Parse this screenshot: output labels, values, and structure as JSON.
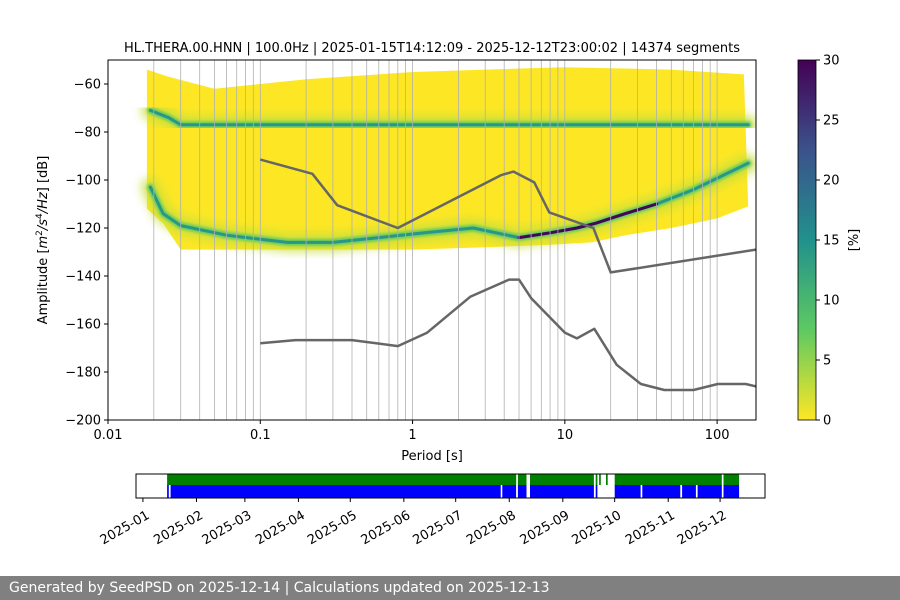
{
  "chart_data": [
    {
      "type": "heatmap",
      "title": "HL.THERA.00.HNN | 100.0Hz | 2025-01-15T14:12:09 - 2025-12-12T23:00:02 | 14374 segments",
      "xlabel": "Period [s]",
      "ylabel": "Amplitude [m²/s⁴/Hz] [dB]",
      "x_scale": "log",
      "xlim": [
        0.01,
        180
      ],
      "ylim": [
        -200,
        -50
      ],
      "x_ticks": [
        {
          "value": 0.01,
          "label": "0.01"
        },
        {
          "value": 0.1,
          "label": "0.1"
        },
        {
          "value": 1,
          "label": "1"
        },
        {
          "value": 10,
          "label": "10"
        },
        {
          "value": 100,
          "label": "100"
        }
      ],
      "y_ticks": [
        {
          "value": -60,
          "label": "−60"
        },
        {
          "value": -80,
          "label": "−80"
        },
        {
          "value": -100,
          "label": "−100"
        },
        {
          "value": -120,
          "label": "−120"
        },
        {
          "value": -140,
          "label": "−140"
        },
        {
          "value": -160,
          "label": "−160"
        },
        {
          "value": -180,
          "label": "−180"
        },
        {
          "value": -200,
          "label": "−200"
        }
      ],
      "grid": "vertical lines at log-spaced periods",
      "colorbar": {
        "label": "[%]",
        "range": [
          0,
          30
        ],
        "ticks": [
          {
            "value": 0,
            "label": "0"
          },
          {
            "value": 5,
            "label": "5"
          },
          {
            "value": 10,
            "label": "10"
          },
          {
            "value": 15,
            "label": "15"
          },
          {
            "value": 20,
            "label": "20"
          },
          {
            "value": 25,
            "label": "25"
          },
          {
            "value": 30,
            "label": "30"
          }
        ],
        "colormap": "viridis_r",
        "colors": [
          "#fde725",
          "#5ec962",
          "#21918c",
          "#3b528b",
          "#440154"
        ]
      },
      "density_ridges": [
        {
          "points": [
            [
              0.019,
              -103
            ],
            [
              0.023,
              -114
            ],
            [
              0.03,
              -119
            ],
            [
              0.06,
              -123
            ],
            [
              0.15,
              -126
            ],
            [
              0.3,
              -126
            ],
            [
              0.6,
              -124
            ],
            [
              1.2,
              -122
            ],
            [
              2.5,
              -120
            ],
            [
              5,
              -124
            ],
            [
              8,
              -122
            ],
            [
              12,
              -120
            ],
            [
              16,
              -118
            ],
            [
              25,
              -114
            ],
            [
              40,
              -110
            ],
            [
              70,
              -104
            ],
            [
              110,
              -98
            ],
            [
              160,
              -93
            ]
          ]
        },
        {
          "points": [
            [
              0.019,
              -71
            ],
            [
              0.025,
              -74
            ],
            [
              0.03,
              -77
            ],
            [
              0.05,
              -77
            ],
            [
              0.2,
              -77
            ],
            [
              1,
              -77
            ],
            [
              5,
              -77
            ],
            [
              20,
              -77
            ],
            [
              60,
              -77
            ],
            [
              160,
              -77
            ]
          ]
        }
      ],
      "density_envelope": {
        "upper": [
          [
            0.018,
            -54
          ],
          [
            0.025,
            -57
          ],
          [
            0.05,
            -62
          ],
          [
            0.2,
            -58
          ],
          [
            1,
            -55
          ],
          [
            3,
            -54
          ],
          [
            10,
            -53
          ],
          [
            50,
            -54
          ],
          [
            150,
            -56
          ]
        ],
        "lower": [
          [
            0.018,
            -112
          ],
          [
            0.023,
            -118
          ],
          [
            0.03,
            -129
          ],
          [
            0.1,
            -129
          ],
          [
            1,
            -129
          ],
          [
            3,
            -128
          ],
          [
            8,
            -127
          ],
          [
            15,
            -126
          ],
          [
            25,
            -123
          ],
          [
            50,
            -120
          ],
          [
            100,
            -116
          ],
          [
            160,
            -111
          ]
        ]
      },
      "series": [
        {
          "values": [
            [
              0.1,
              -91.5
            ],
            [
              0.22,
              -97.4
            ],
            [
              0.32,
              -110.5
            ],
            [
              0.8,
              -120
            ],
            [
              3.8,
              -98
            ],
            [
              4.6,
              -96.5
            ],
            [
              6.3,
              -101
            ],
            [
              7.9,
              -113.5
            ],
            [
              15.4,
              -120
            ],
            [
              20,
              -138.5
            ],
            [
              180,
              -129
            ]
          ]
        },
        {
          "values": [
            [
              0.1,
              -168
            ],
            [
              0.17,
              -166.7
            ],
            [
              0.4,
              -166.7
            ],
            [
              0.8,
              -169.2
            ],
            [
              1.24,
              -163.7
            ],
            [
              2.4,
              -148.6
            ],
            [
              4.3,
              -141.5
            ],
            [
              5,
              -141.5
            ],
            [
              6,
              -149.2
            ],
            [
              10,
              -163.6
            ],
            [
              12,
              -166
            ],
            [
              15.6,
              -162
            ],
            [
              21.9,
              -177
            ],
            [
              31.6,
              -185
            ],
            [
              45,
              -187.5
            ],
            [
              70,
              -187.5
            ],
            [
              101,
              -185
            ],
            [
              154,
              -185
            ],
            [
              180,
              -186
            ]
          ]
        }
      ],
      "grid_x": [
        0.02,
        0.03,
        0.04,
        0.05,
        0.06,
        0.07,
        0.08,
        0.09,
        0.1,
        0.2,
        0.3,
        0.4,
        0.5,
        0.6,
        0.7,
        0.8,
        0.9,
        1,
        2,
        3,
        4,
        5,
        6,
        7,
        8,
        9,
        10,
        20,
        30,
        40,
        50,
        60,
        70,
        80,
        90,
        100
      ]
    },
    {
      "type": "timeline",
      "x_type": "date",
      "xlim": [
        "2024-12-28",
        "2025-12-27"
      ],
      "x_ticks": [
        {
          "value": "2025-01-01",
          "label": "2025-01"
        },
        {
          "value": "2025-02-01",
          "label": "2025-02"
        },
        {
          "value": "2025-03-01",
          "label": "2025-03"
        },
        {
          "value": "2025-04-01",
          "label": "2025-04"
        },
        {
          "value": "2025-05-01",
          "label": "2025-05"
        },
        {
          "value": "2025-06-01",
          "label": "2025-06"
        },
        {
          "value": "2025-07-01",
          "label": "2025-07"
        },
        {
          "value": "2025-08-01",
          "label": "2025-08"
        },
        {
          "value": "2025-09-01",
          "label": "2025-09"
        },
        {
          "value": "2025-10-01",
          "label": "2025-10"
        },
        {
          "value": "2025-11-01",
          "label": "2025-11"
        },
        {
          "value": "2025-12-01",
          "label": "2025-12"
        }
      ],
      "colors": {
        "available": "#008000",
        "used": "#0000ff"
      },
      "available_ranges": [
        [
          "2025-01-15",
          "2025-08-05"
        ],
        [
          "2025-08-06",
          "2025-08-11"
        ],
        [
          "2025-08-13",
          "2025-09-19"
        ],
        [
          "2025-09-20",
          "2025-09-21"
        ],
        [
          "2025-09-22",
          "2025-09-23"
        ],
        [
          "2025-09-26",
          "2025-09-27"
        ],
        [
          "2025-10-01",
          "2025-12-02"
        ],
        [
          "2025-12-03",
          "2025-12-12"
        ]
      ],
      "used_ranges": [
        [
          "2025-01-15",
          "2025-01-16"
        ],
        [
          "2025-01-17",
          "2025-07-27"
        ],
        [
          "2025-07-28",
          "2025-08-05"
        ],
        [
          "2025-08-06",
          "2025-08-11"
        ],
        [
          "2025-08-13",
          "2025-09-19"
        ],
        [
          "2025-09-20",
          "2025-09-21"
        ],
        [
          "2025-10-01",
          "2025-10-16"
        ],
        [
          "2025-10-17",
          "2025-11-08"
        ],
        [
          "2025-11-09",
          "2025-11-17"
        ],
        [
          "2025-11-18",
          "2025-12-02"
        ],
        [
          "2025-12-03",
          "2025-12-12"
        ]
      ]
    }
  ],
  "footer": {
    "text": "Generated by SeedPSD on 2025-12-14 | Calculations updated on 2025-12-13"
  }
}
